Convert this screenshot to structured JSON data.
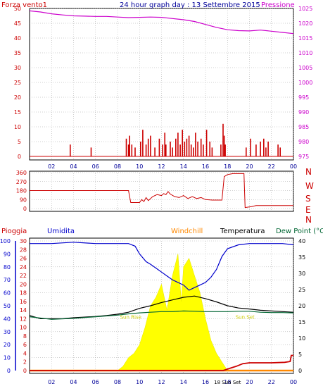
{
  "title": "24 hour graph day : 13 Settembre 2015",
  "colors": {
    "wind": "#cc0000",
    "pressure": "#cc00cc",
    "direction": "#cc0000",
    "humidity": "#0000cc",
    "temperature": "#000000",
    "dewpoint": "#006633",
    "windchill": "#ff8800",
    "rain": "#cc0000",
    "solar": "#ffff00",
    "grid": "#a0a0a0"
  },
  "chart_data": [
    {
      "type": "bar",
      "name": "wind",
      "left_label": "Forza vento1",
      "right_label": "Pressione",
      "x_ticks": [
        "02",
        "04",
        "06",
        "08",
        "10",
        "12",
        "14",
        "16",
        "18",
        "20",
        "22",
        "00"
      ],
      "y_left": {
        "range": [
          0,
          50
        ],
        "ticks": [
          0,
          5,
          10,
          15,
          20,
          25,
          30,
          35,
          40,
          45,
          50
        ]
      },
      "y_right": {
        "range": [
          975,
          1025
        ],
        "ticks": [
          975,
          980,
          985,
          990,
          995,
          1000,
          1005,
          1010,
          1015,
          1020,
          1025
        ]
      },
      "wind_gusts": [
        [
          3.7,
          4
        ],
        [
          5.6,
          3
        ],
        [
          8.8,
          6
        ],
        [
          9.0,
          4
        ],
        [
          9.1,
          7
        ],
        [
          9.3,
          4
        ],
        [
          9.6,
          3
        ],
        [
          10.1,
          5
        ],
        [
          10.3,
          9
        ],
        [
          10.6,
          4
        ],
        [
          10.8,
          6
        ],
        [
          11.0,
          7
        ],
        [
          11.4,
          3
        ],
        [
          11.8,
          6
        ],
        [
          12.1,
          4
        ],
        [
          12.3,
          8
        ],
        [
          12.4,
          4
        ],
        [
          12.8,
          5
        ],
        [
          13.0,
          3
        ],
        [
          13.3,
          6
        ],
        [
          13.5,
          8
        ],
        [
          13.7,
          4
        ],
        [
          13.9,
          9
        ],
        [
          14.1,
          5
        ],
        [
          14.3,
          6
        ],
        [
          14.5,
          7
        ],
        [
          14.7,
          4
        ],
        [
          14.9,
          3
        ],
        [
          15.1,
          8
        ],
        [
          15.3,
          5
        ],
        [
          15.6,
          6
        ],
        [
          15.8,
          4
        ],
        [
          16.1,
          9
        ],
        [
          16.4,
          5
        ],
        [
          16.6,
          3
        ],
        [
          17.4,
          4
        ],
        [
          17.6,
          11
        ],
        [
          17.7,
          7
        ],
        [
          17.8,
          4
        ],
        [
          19.7,
          3
        ],
        [
          20.1,
          6
        ],
        [
          20.6,
          4
        ],
        [
          21.0,
          5
        ],
        [
          21.3,
          6
        ],
        [
          21.5,
          3
        ],
        [
          21.7,
          5
        ],
        [
          22.6,
          4
        ],
        [
          22.8,
          3
        ]
      ],
      "pressure": [
        [
          0,
          1024.2
        ],
        [
          1,
          1023.8
        ],
        [
          2,
          1023.2
        ],
        [
          3,
          1022.8
        ],
        [
          4,
          1022.5
        ],
        [
          5,
          1022.4
        ],
        [
          6,
          1022.3
        ],
        [
          7,
          1022.3
        ],
        [
          8,
          1022.1
        ],
        [
          9,
          1021.9
        ],
        [
          10,
          1022.0
        ],
        [
          11,
          1022.1
        ],
        [
          12,
          1022.0
        ],
        [
          13,
          1021.6
        ],
        [
          14,
          1021.2
        ],
        [
          15,
          1020.6
        ],
        [
          16,
          1019.6
        ],
        [
          17,
          1018.6
        ],
        [
          18,
          1017.8
        ],
        [
          19,
          1017.5
        ],
        [
          20,
          1017.4
        ],
        [
          21,
          1017.7
        ],
        [
          22,
          1017.3
        ],
        [
          23,
          1016.9
        ],
        [
          24,
          1016.5
        ]
      ]
    },
    {
      "type": "line",
      "name": "wind-direction",
      "y_ticks": [
        0,
        90,
        180,
        270,
        360
      ],
      "y_range": [
        0,
        360
      ],
      "compass": [
        "N",
        "W",
        "S",
        "E",
        "N"
      ],
      "direction": [
        [
          0,
          180
        ],
        [
          9.0,
          180
        ],
        [
          9.2,
          60
        ],
        [
          10.0,
          60
        ],
        [
          10.2,
          90
        ],
        [
          10.4,
          70
        ],
        [
          10.6,
          110
        ],
        [
          10.8,
          80
        ],
        [
          11.2,
          120
        ],
        [
          11.6,
          140
        ],
        [
          12.0,
          130
        ],
        [
          12.2,
          150
        ],
        [
          12.4,
          140
        ],
        [
          12.6,
          170
        ],
        [
          12.8,
          145
        ],
        [
          13.2,
          120
        ],
        [
          13.6,
          110
        ],
        [
          14.0,
          130
        ],
        [
          14.4,
          100
        ],
        [
          14.8,
          120
        ],
        [
          15.2,
          100
        ],
        [
          15.6,
          110
        ],
        [
          16.0,
          90
        ],
        [
          16.6,
          85
        ],
        [
          17.5,
          85
        ],
        [
          17.7,
          320
        ],
        [
          18.0,
          340
        ],
        [
          18.5,
          350
        ],
        [
          19.5,
          350
        ],
        [
          19.6,
          10
        ],
        [
          20.2,
          20
        ],
        [
          20.6,
          30
        ],
        [
          24,
          30
        ]
      ]
    },
    {
      "type": "line",
      "name": "weather",
      "labels": {
        "rain": "Pioggia",
        "humidity": "Umidita",
        "windchill": "Windchill",
        "temperature": "Temperatura",
        "dewpoint": "Dew Point (°C"
      },
      "y_left_humidity": {
        "range": [
          0,
          100
        ],
        "ticks": [
          0,
          10,
          20,
          30,
          40,
          50,
          60,
          70,
          80,
          90,
          100
        ]
      },
      "y_left_rain": {
        "range": [
          0,
          30
        ],
        "ticks": [
          0,
          2,
          4,
          6,
          8,
          10,
          12,
          14,
          16,
          18,
          20,
          22,
          24,
          26,
          28,
          30
        ]
      },
      "y_right_temp": {
        "range": [
          0,
          40
        ],
        "ticks": [
          0,
          5,
          10,
          15,
          20,
          25,
          30,
          35,
          40
        ]
      },
      "x_ticks": [
        "02",
        "04",
        "06",
        "08",
        "10",
        "12",
        "14",
        "16",
        "18",
        "20",
        "22",
        "00"
      ],
      "annotations": [
        {
          "text": "Sun Rise",
          "x": 9.2,
          "y": 12
        },
        {
          "text": "Sun Set",
          "x": 19.6,
          "y": 12
        },
        {
          "text": "18 Sun Set",
          "x": 18.0,
          "y": -4
        }
      ],
      "humidity": [
        [
          0,
          98
        ],
        [
          2,
          98
        ],
        [
          4,
          99
        ],
        [
          6,
          98
        ],
        [
          8,
          98
        ],
        [
          9,
          98
        ],
        [
          9.6,
          96
        ],
        [
          10,
          90
        ],
        [
          10.6,
          84
        ],
        [
          11,
          82
        ],
        [
          11.5,
          79
        ],
        [
          12,
          76
        ],
        [
          12.5,
          73
        ],
        [
          13,
          70
        ],
        [
          13.5,
          68
        ],
        [
          14,
          66
        ],
        [
          14.5,
          62
        ],
        [
          15,
          64
        ],
        [
          15.5,
          66
        ],
        [
          16,
          68
        ],
        [
          16.5,
          72
        ],
        [
          17,
          78
        ],
        [
          17.5,
          88
        ],
        [
          18,
          94
        ],
        [
          19,
          97
        ],
        [
          20,
          98
        ],
        [
          21,
          98
        ],
        [
          22,
          98
        ],
        [
          23,
          98
        ],
        [
          24,
          97
        ]
      ],
      "temperature": [
        [
          0,
          17
        ],
        [
          1,
          16
        ],
        [
          2,
          16
        ],
        [
          3,
          16
        ],
        [
          4,
          16.3
        ],
        [
          5,
          16.5
        ],
        [
          6,
          16.7
        ],
        [
          7,
          17
        ],
        [
          8,
          17.4
        ],
        [
          9,
          18
        ],
        [
          9.5,
          18.6
        ],
        [
          10,
          19.2
        ],
        [
          11,
          20
        ],
        [
          12,
          21
        ],
        [
          13,
          21.8
        ],
        [
          14,
          22.6
        ],
        [
          15,
          23
        ],
        [
          16,
          22.2
        ],
        [
          17,
          21.2
        ],
        [
          18,
          20
        ],
        [
          19,
          19.3
        ],
        [
          20,
          19
        ],
        [
          21,
          18.6
        ],
        [
          22,
          18.4
        ],
        [
          23,
          18.2
        ],
        [
          24,
          18
        ]
      ],
      "dewpoint": [
        [
          0,
          16.6
        ],
        [
          2,
          15.8
        ],
        [
          4,
          16.1
        ],
        [
          6,
          16.6
        ],
        [
          8,
          17.1
        ],
        [
          9,
          17.5
        ],
        [
          10,
          17.8
        ],
        [
          11,
          18
        ],
        [
          12,
          18.2
        ],
        [
          13,
          18.2
        ],
        [
          14,
          18.4
        ],
        [
          15,
          18.3
        ],
        [
          16,
          18.2
        ],
        [
          17,
          18.2
        ],
        [
          18,
          18.2
        ],
        [
          19,
          18.3
        ],
        [
          20,
          18.3
        ],
        [
          21,
          18
        ],
        [
          22,
          17.9
        ],
        [
          23,
          17.9
        ],
        [
          24,
          17.8
        ]
      ],
      "windchill": [
        [
          0,
          0
        ],
        [
          24,
          0
        ]
      ],
      "solar": [
        [
          8,
          0
        ],
        [
          8.5,
          1
        ],
        [
          9,
          3
        ],
        [
          9.5,
          4
        ],
        [
          10,
          6
        ],
        [
          10.5,
          10
        ],
        [
          11,
          15
        ],
        [
          11.5,
          17
        ],
        [
          12,
          20
        ],
        [
          12.5,
          14
        ],
        [
          13,
          22
        ],
        [
          13.5,
          27
        ],
        [
          13.8,
          16
        ],
        [
          14,
          24
        ],
        [
          14.5,
          26
        ],
        [
          15,
          22
        ],
        [
          15.5,
          18
        ],
        [
          16,
          12
        ],
        [
          16.5,
          7
        ],
        [
          17,
          4
        ],
        [
          17.5,
          2
        ],
        [
          18,
          0
        ]
      ],
      "rain": [
        [
          0,
          0
        ],
        [
          17.6,
          0
        ],
        [
          18.2,
          0.5
        ],
        [
          18.8,
          1
        ],
        [
          19.4,
          1.6
        ],
        [
          20,
          1.8
        ],
        [
          22,
          1.8
        ],
        [
          23.2,
          1.9
        ],
        [
          23.7,
          2.1
        ],
        [
          23.8,
          3.5
        ],
        [
          24,
          3.5
        ]
      ]
    }
  ]
}
